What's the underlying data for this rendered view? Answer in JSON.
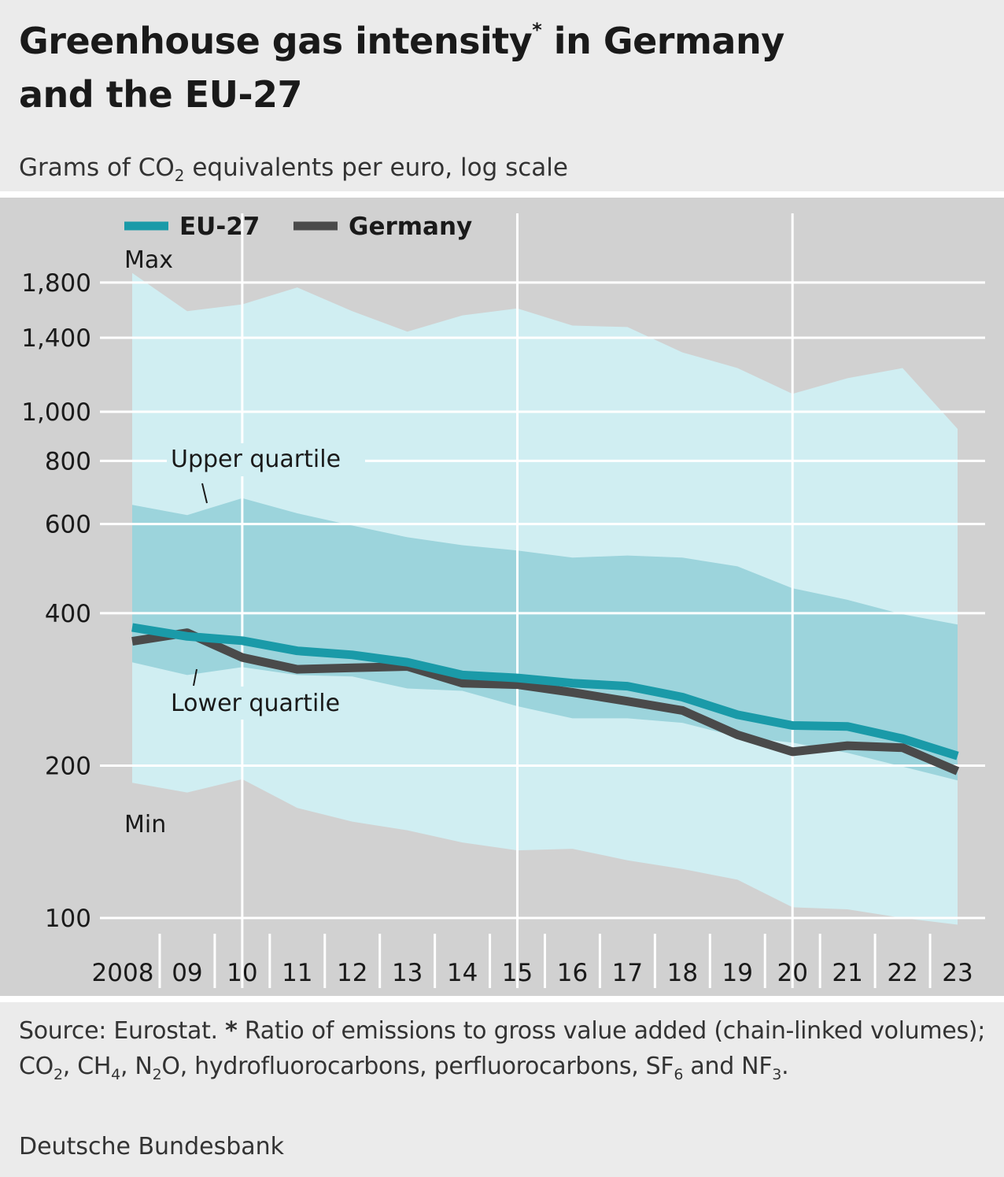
{
  "header": {
    "title_line1": "Greenhouse gas intensity",
    "title_mark": "*",
    "title_rest": " in Germany",
    "title_line2": "and the EU-27",
    "subtitle_pre": "Grams of CO",
    "subtitle_sub": "2",
    "subtitle_post": " equivalents per euro, log scale"
  },
  "footnote": {
    "source": "Source: Eurostat. ",
    "mark": "*",
    "t1": " Ratio of emissions to gross value added (chain-linked volumes); CO",
    "s1": "2",
    "t2": ", CH",
    "s2": "4",
    "t3": ", N",
    "s3": "2",
    "t4": "O, hydrofluorocarbons, perfluorocarbons, SF",
    "s4": "6",
    "t5": " and NF",
    "s5": "3",
    "t6": "."
  },
  "publisher": "Deutsche Bundesbank",
  "colors": {
    "eu27": "#1a9aa8",
    "germany": "#4a4a4a",
    "range_band": "#d0eef2",
    "quartile_band": "#9cd4dc",
    "background": "#d1d1d1",
    "grid": "#ffffff"
  },
  "chart_data": {
    "type": "line",
    "scale": "log",
    "ylim": [
      100,
      2000
    ],
    "y_ticks": [
      100,
      200,
      400,
      600,
      800,
      1000,
      1400,
      1800
    ],
    "y_tick_labels": [
      "100",
      "200",
      "400",
      "600",
      "800",
      "1,000",
      "1,400",
      "1,800"
    ],
    "x": [
      2008,
      2009,
      2010,
      2011,
      2012,
      2013,
      2014,
      2015,
      2016,
      2017,
      2018,
      2019,
      2020,
      2021,
      2022,
      2023
    ],
    "x_tick_labels": [
      "2008",
      "09",
      "10",
      "11",
      "12",
      "13",
      "14",
      "15",
      "16",
      "17",
      "18",
      "19",
      "20",
      "21",
      "22",
      "23"
    ],
    "series": [
      {
        "name": "EU-27",
        "values": [
          375,
          360,
          353,
          337,
          331,
          320,
          302,
          298,
          291,
          287,
          273,
          252,
          240,
          239,
          226,
          209
        ]
      },
      {
        "name": "Germany",
        "values": [
          352,
          366,
          327,
          310,
          312,
          314,
          291,
          289,
          279,
          268,
          257,
          230,
          213,
          219,
          217,
          195
        ]
      }
    ],
    "bands": {
      "max": [
        1880,
        1580,
        1630,
        1760,
        1580,
        1440,
        1550,
        1600,
        1480,
        1470,
        1310,
        1220,
        1085,
        1165,
        1220,
        925
      ],
      "upper_quartile": [
        655,
        625,
        675,
        630,
        596,
        565,
        545,
        532,
        515,
        520,
        515,
        495,
        448,
        425,
        398,
        380
      ],
      "lower_quartile": [
        320,
        302,
        313,
        302,
        300,
        284,
        281,
        262,
        248,
        248,
        243,
        228,
        222,
        212,
        199,
        187
      ],
      "min": [
        185,
        177,
        188,
        165,
        155,
        149,
        141,
        136,
        137,
        130,
        125,
        119,
        105,
        104,
        100,
        97
      ]
    },
    "band_labels": {
      "max": "Max",
      "upper_quartile": "Upper quartile",
      "lower_quartile": "Lower quartile",
      "min": "Min"
    },
    "legend": [
      {
        "name": "EU-27",
        "color": "#1a9aa8"
      },
      {
        "name": "Germany",
        "color": "#4a4a4a"
      }
    ],
    "legend_position": "top-left"
  }
}
